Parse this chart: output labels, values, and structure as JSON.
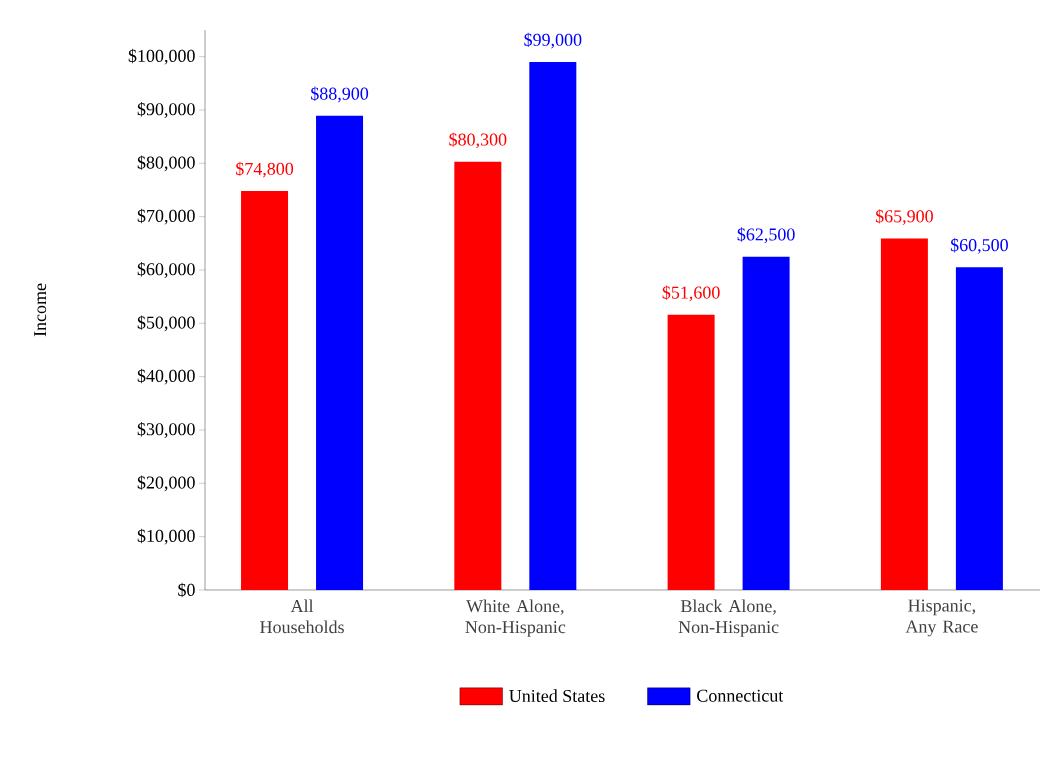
{
  "chart_data": {
    "type": "bar",
    "ylabel": "Income",
    "categories": [
      "All Households",
      "White Alone, Non-Hispanic",
      "Black Alone, Non-Hispanic",
      "Hispanic, Any Race"
    ],
    "series": [
      {
        "name": "United States",
        "color": "#ff0000",
        "values": [
          74800,
          80300,
          51600,
          65900
        ],
        "value_labels": [
          "$74,800",
          "$80,300",
          "$51,600",
          "$65,900"
        ]
      },
      {
        "name": "Connecticut",
        "color": "#0000ff",
        "values": [
          88900,
          99000,
          62500,
          60500
        ],
        "value_labels": [
          "$88,900",
          "$99,000",
          "$62,500",
          "$60,500"
        ]
      }
    ],
    "ylim": [
      0,
      105000
    ],
    "yticks": [
      {
        "value": 0,
        "label": "$0"
      },
      {
        "value": 10000,
        "label": "$10,000"
      },
      {
        "value": 20000,
        "label": "$20,000"
      },
      {
        "value": 30000,
        "label": "$30,000"
      },
      {
        "value": 40000,
        "label": "$40,000"
      },
      {
        "value": 50000,
        "label": "$50,000"
      },
      {
        "value": 60000,
        "label": "$60,000"
      },
      {
        "value": 70000,
        "label": "$70,000"
      },
      {
        "value": 80000,
        "label": "$80,000"
      },
      {
        "value": 90000,
        "label": "$90,000"
      },
      {
        "value": 100000,
        "label": "$100,000"
      }
    ],
    "legend": "bottom",
    "grid": false
  }
}
